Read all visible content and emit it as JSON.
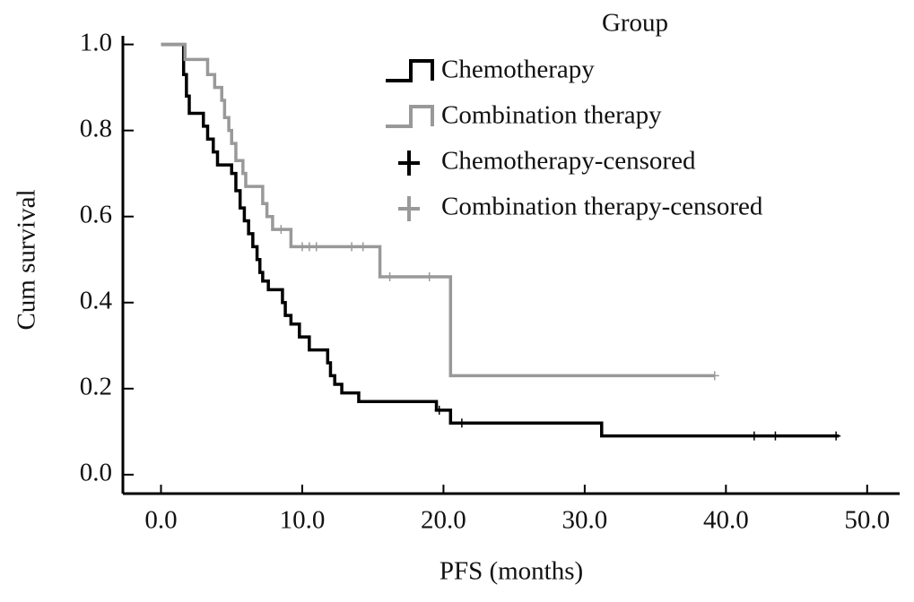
{
  "chart_data": {
    "type": "kaplan-meier",
    "x_label": "PFS (months)",
    "y_label": "Cum survival",
    "legend_title": "Group",
    "xlim": [
      -2.7,
      52.3
    ],
    "ylim": [
      -0.044,
      1.02
    ],
    "xticks": [
      {
        "value": 0,
        "label": "0.0"
      },
      {
        "value": 10,
        "label": "10.0"
      },
      {
        "value": 20,
        "label": "20.0"
      },
      {
        "value": 30,
        "label": "30.0"
      },
      {
        "value": 40,
        "label": "40.0"
      },
      {
        "value": 50,
        "label": "50.0"
      }
    ],
    "yticks": [
      {
        "value": 0,
        "label": "0.0"
      },
      {
        "value": 0.2,
        "label": "0.2"
      },
      {
        "value": 0.4,
        "label": "0.4"
      },
      {
        "value": 0.6,
        "label": "0.6"
      },
      {
        "value": 0.8,
        "label": "0.8"
      },
      {
        "value": 1,
        "label": "1.0"
      }
    ],
    "legend": "upper right",
    "series": [
      {
        "name": "Chemotherapy",
        "type": "step",
        "color": "#000000",
        "x": [
          0,
          1.6,
          1.8,
          2.0,
          3.0,
          3.3,
          3.7,
          4.0,
          5.0,
          5.3,
          5.6,
          5.9,
          6.2,
          6.5,
          6.8,
          7.0,
          7.2,
          7.6,
          8.6,
          8.8,
          9.2,
          9.8,
          10.5,
          11.8,
          12.0,
          12.3,
          12.8,
          14.0,
          19.5,
          20.5,
          31.2,
          48.0
        ],
        "values": [
          1.0,
          0.93,
          0.88,
          0.84,
          0.81,
          0.78,
          0.75,
          0.72,
          0.7,
          0.66,
          0.62,
          0.59,
          0.56,
          0.53,
          0.5,
          0.47,
          0.45,
          0.43,
          0.4,
          0.37,
          0.35,
          0.32,
          0.29,
          0.26,
          0.23,
          0.21,
          0.19,
          0.17,
          0.15,
          0.12,
          0.09,
          0.09
        ]
      },
      {
        "name": "Combination therapy",
        "type": "step",
        "color": "#999999",
        "x": [
          0,
          1.7,
          3.3,
          3.8,
          4.3,
          4.5,
          4.8,
          5.0,
          5.3,
          5.8,
          6.0,
          7.2,
          7.5,
          7.9,
          9.2,
          15.5,
          20.5,
          39.2
        ],
        "values": [
          1.0,
          0.965,
          0.93,
          0.9,
          0.87,
          0.83,
          0.8,
          0.77,
          0.73,
          0.7,
          0.67,
          0.63,
          0.6,
          0.57,
          0.53,
          0.46,
          0.23,
          0.23
        ]
      },
      {
        "name": "Chemotherapy-censored",
        "type": "censored",
        "color": "#000000",
        "x": [
          19.7,
          21.3,
          42.0,
          43.5,
          47.8
        ],
        "values": [
          0.15,
          0.12,
          0.09,
          0.09,
          0.09
        ]
      },
      {
        "name": "Combination therapy-censored",
        "type": "censored",
        "color": "#999999",
        "x": [
          8.5,
          10.0,
          10.5,
          11.0,
          13.5,
          14.3,
          16.2,
          19.0,
          39.2
        ],
        "values": [
          0.57,
          0.53,
          0.53,
          0.53,
          0.53,
          0.53,
          0.46,
          0.46,
          0.23
        ]
      }
    ]
  }
}
